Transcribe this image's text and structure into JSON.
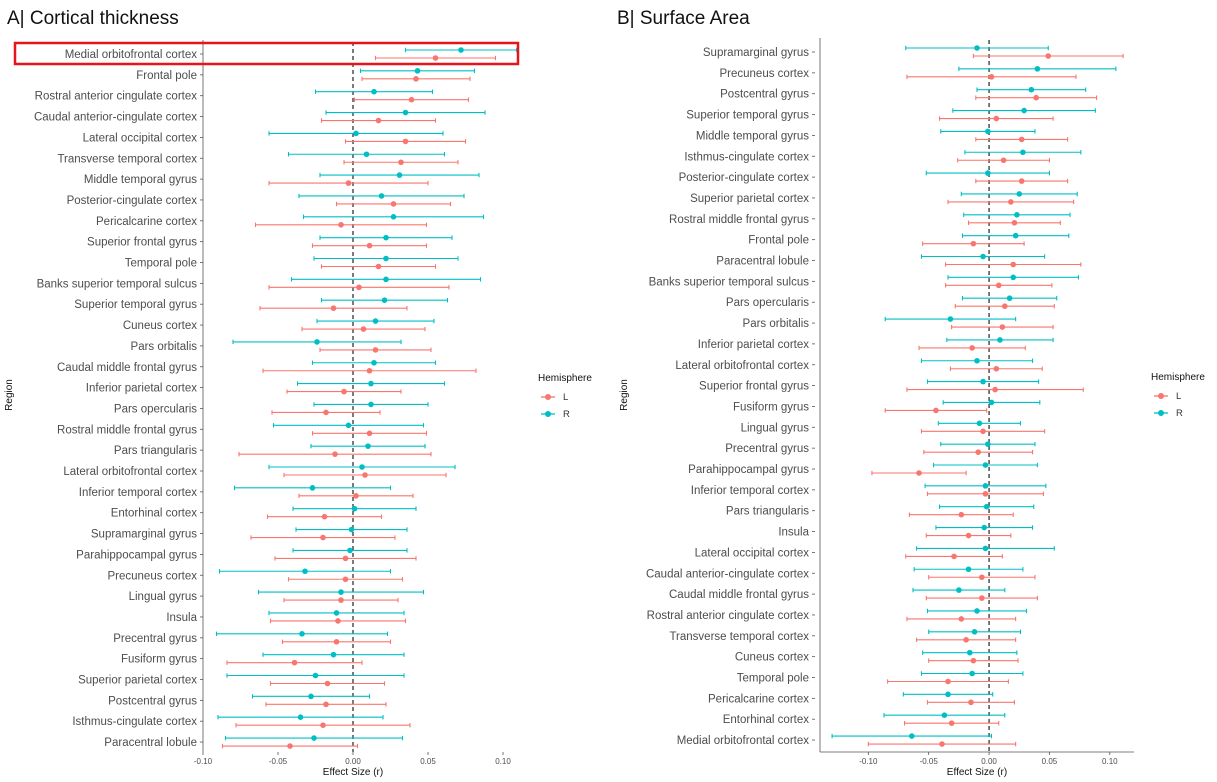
{
  "colors": {
    "L": "#f8766d",
    "R": "#00bfc4",
    "highlight": "#e8141b",
    "zero_line": "#333333"
  },
  "chart_data": [
    {
      "type": "forest",
      "title": "A| Cortical thickness",
      "ylabel": "Region",
      "xlabel": "Effect Size (r)",
      "xlim": [
        -0.1,
        0.1
      ],
      "xticks": [
        "-0.10",
        "-0.05",
        "0.00",
        "0.05",
        "0.10"
      ],
      "xtick_values": [
        -0.1,
        -0.05,
        0,
        0.05,
        0.1
      ],
      "highlighted_region": "Medial orbitofrontal cortex",
      "legend": {
        "title": "Hemisphere",
        "entries": [
          "L",
          "R"
        ]
      },
      "regions": [
        {
          "name": "Medial orbitofrontal cortex",
          "L": [
            0.055,
            0.015,
            0.095
          ],
          "R": [
            0.072,
            0.035,
            0.109
          ]
        },
        {
          "name": "Frontal pole",
          "L": [
            0.042,
            0.006,
            0.078
          ],
          "R": [
            0.043,
            0.005,
            0.081
          ]
        },
        {
          "name": "Rostral anterior cingulate cortex",
          "L": [
            0.039,
            0.001,
            0.077
          ],
          "R": [
            0.014,
            -0.025,
            0.053
          ]
        },
        {
          "name": "Caudal anterior-cingulate cortex",
          "L": [
            0.017,
            -0.021,
            0.055
          ],
          "R": [
            0.035,
            -0.018,
            0.088
          ]
        },
        {
          "name": "Lateral occipital cortex",
          "L": [
            0.035,
            -0.005,
            0.075
          ],
          "R": [
            0.002,
            -0.056,
            0.06
          ]
        },
        {
          "name": "Transverse temporal cortex",
          "L": [
            0.032,
            -0.006,
            0.07
          ],
          "R": [
            0.009,
            -0.043,
            0.061
          ]
        },
        {
          "name": "Middle temporal gyrus",
          "L": [
            -0.003,
            -0.056,
            0.05
          ],
          "R": [
            0.031,
            -0.022,
            0.084
          ]
        },
        {
          "name": "Posterior-cingulate cortex",
          "L": [
            0.027,
            -0.011,
            0.065
          ],
          "R": [
            0.019,
            -0.036,
            0.074
          ]
        },
        {
          "name": "Pericalcarine cortex",
          "L": [
            -0.008,
            -0.065,
            0.049
          ],
          "R": [
            0.027,
            -0.033,
            0.087
          ]
        },
        {
          "name": "Superior frontal gyrus",
          "L": [
            0.011,
            -0.027,
            0.049
          ],
          "R": [
            0.022,
            -0.022,
            0.066
          ]
        },
        {
          "name": "Temporal pole",
          "L": [
            0.017,
            -0.021,
            0.055
          ],
          "R": [
            0.022,
            -0.026,
            0.07
          ]
        },
        {
          "name": "Banks superior temporal sulcus",
          "L": [
            0.004,
            -0.056,
            0.064
          ],
          "R": [
            0.022,
            -0.041,
            0.085
          ]
        },
        {
          "name": "Superior temporal gyrus",
          "L": [
            -0.013,
            -0.062,
            0.036
          ],
          "R": [
            0.021,
            -0.021,
            0.063
          ]
        },
        {
          "name": "Cuneus cortex",
          "L": [
            0.007,
            -0.034,
            0.048
          ],
          "R": [
            0.015,
            -0.024,
            0.054
          ]
        },
        {
          "name": "Pars orbitalis",
          "L": [
            0.015,
            -0.022,
            0.052
          ],
          "R": [
            -0.024,
            -0.08,
            0.032
          ]
        },
        {
          "name": "Caudal middle frontal gyrus",
          "L": [
            0.011,
            -0.06,
            0.082
          ],
          "R": [
            0.014,
            -0.027,
            0.055
          ]
        },
        {
          "name": "Inferior parietal cortex",
          "L": [
            -0.006,
            -0.044,
            0.032
          ],
          "R": [
            0.012,
            -0.037,
            0.061
          ]
        },
        {
          "name": "Pars opercularis",
          "L": [
            -0.018,
            -0.054,
            0.018
          ],
          "R": [
            0.012,
            -0.026,
            0.05
          ]
        },
        {
          "name": "Rostral middle frontal gyrus",
          "L": [
            0.011,
            -0.027,
            0.049
          ],
          "R": [
            -0.003,
            -0.053,
            0.047
          ]
        },
        {
          "name": "Pars triangularis",
          "L": [
            -0.012,
            -0.076,
            0.052
          ],
          "R": [
            0.01,
            -0.028,
            0.048
          ]
        },
        {
          "name": "Lateral orbitofrontal cortex",
          "L": [
            0.008,
            -0.046,
            0.062
          ],
          "R": [
            0.006,
            -0.056,
            0.068
          ]
        },
        {
          "name": "Inferior temporal cortex",
          "L": [
            0.002,
            -0.036,
            0.04
          ],
          "R": [
            -0.027,
            -0.079,
            0.025
          ]
        },
        {
          "name": "Entorhinal cortex",
          "L": [
            -0.019,
            -0.057,
            0.019
          ],
          "R": [
            0.001,
            -0.04,
            0.042
          ]
        },
        {
          "name": "Supramarginal gyrus",
          "L": [
            -0.02,
            -0.068,
            0.028
          ],
          "R": [
            -0.001,
            -0.038,
            0.036
          ]
        },
        {
          "name": "Parahippocampal gyrus",
          "L": [
            -0.005,
            -0.052,
            0.042
          ],
          "R": [
            -0.002,
            -0.04,
            0.036
          ]
        },
        {
          "name": "Precuneus cortex",
          "L": [
            -0.005,
            -0.043,
            0.033
          ],
          "R": [
            -0.032,
            -0.089,
            0.025
          ]
        },
        {
          "name": "Lingual gyrus",
          "L": [
            -0.008,
            -0.046,
            0.03
          ],
          "R": [
            -0.008,
            -0.063,
            0.047
          ]
        },
        {
          "name": "Insula",
          "L": [
            -0.01,
            -0.055,
            0.035
          ],
          "R": [
            -0.011,
            -0.056,
            0.034
          ]
        },
        {
          "name": "Precentral gyrus",
          "L": [
            -0.011,
            -0.047,
            0.025
          ],
          "R": [
            -0.034,
            -0.091,
            0.023
          ]
        },
        {
          "name": "Fusiform gyrus",
          "L": [
            -0.039,
            -0.084,
            0.006
          ],
          "R": [
            -0.013,
            -0.06,
            0.034
          ]
        },
        {
          "name": "Superior parietal cortex",
          "L": [
            -0.017,
            -0.055,
            0.021
          ],
          "R": [
            -0.025,
            -0.084,
            0.034
          ]
        },
        {
          "name": "Postcentral gyrus",
          "L": [
            -0.018,
            -0.058,
            0.022
          ],
          "R": [
            -0.028,
            -0.067,
            0.011
          ]
        },
        {
          "name": "Isthmus-cingulate cortex",
          "L": [
            -0.02,
            -0.078,
            0.038
          ],
          "R": [
            -0.035,
            -0.09,
            0.02
          ]
        },
        {
          "name": "Paracentral lobule",
          "L": [
            -0.042,
            -0.087,
            0.003
          ],
          "R": [
            -0.026,
            -0.085,
            0.033
          ]
        }
      ]
    },
    {
      "type": "forest",
      "title": "B| Surface Area",
      "ylabel": "Region",
      "xlabel": "Effect Size (r)",
      "xlim": [
        -0.14,
        0.12
      ],
      "xticks": [
        "-0.10",
        "-0.05",
        "0.00",
        "0.05",
        "0.10"
      ],
      "xtick_values": [
        -0.1,
        -0.05,
        0,
        0.05,
        0.1
      ],
      "legend": {
        "title": "Hemisphere",
        "entries": [
          "L",
          "R"
        ]
      },
      "regions": [
        {
          "name": "Supramarginal gyrus",
          "L": [
            0.049,
            -0.013,
            0.111
          ],
          "R": [
            -0.01,
            -0.069,
            0.049
          ]
        },
        {
          "name": "Precuneus cortex",
          "L": [
            0.002,
            -0.068,
            0.072
          ],
          "R": [
            0.04,
            -0.025,
            0.105
          ]
        },
        {
          "name": "Postcentral gyrus",
          "L": [
            0.039,
            -0.011,
            0.089
          ],
          "R": [
            0.035,
            -0.01,
            0.08
          ]
        },
        {
          "name": "Superior temporal gyrus",
          "L": [
            0.006,
            -0.041,
            0.053
          ],
          "R": [
            0.029,
            -0.03,
            0.088
          ]
        },
        {
          "name": "Middle temporal gyrus",
          "L": [
            0.027,
            -0.011,
            0.065
          ],
          "R": [
            -0.001,
            -0.04,
            0.038
          ]
        },
        {
          "name": "Isthmus-cingulate cortex",
          "L": [
            0.012,
            -0.026,
            0.05
          ],
          "R": [
            0.028,
            -0.02,
            0.076
          ]
        },
        {
          "name": "Posterior-cingulate cortex",
          "L": [
            0.027,
            -0.011,
            0.065
          ],
          "R": [
            -0.001,
            -0.052,
            0.05
          ]
        },
        {
          "name": "Superior parietal cortex",
          "L": [
            0.018,
            -0.034,
            0.07
          ],
          "R": [
            0.025,
            -0.023,
            0.073
          ]
        },
        {
          "name": "Rostral middle frontal gyrus",
          "L": [
            0.021,
            -0.017,
            0.059
          ],
          "R": [
            0.023,
            -0.021,
            0.067
          ]
        },
        {
          "name": "Frontal pole",
          "L": [
            -0.013,
            -0.055,
            0.029
          ],
          "R": [
            0.022,
            -0.022,
            0.066
          ]
        },
        {
          "name": "Paracentral lobule",
          "L": [
            0.02,
            -0.036,
            0.076
          ],
          "R": [
            -0.005,
            -0.056,
            0.046
          ]
        },
        {
          "name": "Banks superior temporal sulcus",
          "L": [
            0.008,
            -0.036,
            0.052
          ],
          "R": [
            0.02,
            -0.034,
            0.074
          ]
        },
        {
          "name": "Pars opercularis",
          "L": [
            0.013,
            -0.028,
            0.054
          ],
          "R": [
            0.017,
            -0.022,
            0.056
          ]
        },
        {
          "name": "Pars orbitalis",
          "L": [
            0.011,
            -0.031,
            0.053
          ],
          "R": [
            -0.032,
            -0.086,
            0.022
          ]
        },
        {
          "name": "Inferior parietal cortex",
          "L": [
            -0.014,
            -0.058,
            0.03
          ],
          "R": [
            0.009,
            -0.035,
            0.053
          ]
        },
        {
          "name": "Lateral orbitofrontal cortex",
          "L": [
            0.006,
            -0.032,
            0.044
          ],
          "R": [
            -0.01,
            -0.056,
            0.036
          ]
        },
        {
          "name": "Superior frontal gyrus",
          "L": [
            0.005,
            -0.068,
            0.078
          ],
          "R": [
            -0.005,
            -0.051,
            0.041
          ]
        },
        {
          "name": "Fusiform gyrus",
          "L": [
            -0.044,
            -0.086,
            -0.002
          ],
          "R": [
            0.002,
            -0.038,
            0.042
          ]
        },
        {
          "name": "Lingual gyrus",
          "L": [
            -0.005,
            -0.056,
            0.046
          ],
          "R": [
            -0.008,
            -0.042,
            0.026
          ]
        },
        {
          "name": "Precentral gyrus",
          "L": [
            -0.009,
            -0.054,
            0.036
          ],
          "R": [
            -0.001,
            -0.04,
            0.038
          ]
        },
        {
          "name": "Parahippocampal gyrus",
          "L": [
            -0.058,
            -0.097,
            -0.019
          ],
          "R": [
            -0.003,
            -0.046,
            0.04
          ]
        },
        {
          "name": "Inferior temporal cortex",
          "L": [
            -0.003,
            -0.051,
            0.045
          ],
          "R": [
            -0.003,
            -0.053,
            0.047
          ]
        },
        {
          "name": "Pars triangularis",
          "L": [
            -0.023,
            -0.066,
            0.02
          ],
          "R": [
            -0.002,
            -0.041,
            0.037
          ]
        },
        {
          "name": "Insula",
          "L": [
            -0.017,
            -0.052,
            0.018
          ],
          "R": [
            -0.004,
            -0.044,
            0.036
          ]
        },
        {
          "name": "Lateral occipital cortex",
          "L": [
            -0.029,
            -0.069,
            0.011
          ],
          "R": [
            -0.003,
            -0.06,
            0.054
          ]
        },
        {
          "name": "Caudal anterior-cingulate cortex",
          "L": [
            -0.006,
            -0.05,
            0.038
          ],
          "R": [
            -0.017,
            -0.062,
            0.028
          ]
        },
        {
          "name": "Caudal middle frontal gyrus",
          "L": [
            -0.006,
            -0.052,
            0.04
          ],
          "R": [
            -0.025,
            -0.063,
            0.013
          ]
        },
        {
          "name": "Rostral anterior cingulate cortex",
          "L": [
            -0.023,
            -0.068,
            0.022
          ],
          "R": [
            -0.01,
            -0.051,
            0.031
          ]
        },
        {
          "name": "Transverse temporal cortex",
          "L": [
            -0.019,
            -0.06,
            0.022
          ],
          "R": [
            -0.012,
            -0.05,
            0.026
          ]
        },
        {
          "name": "Cuneus cortex",
          "L": [
            -0.013,
            -0.05,
            0.024
          ],
          "R": [
            -0.016,
            -0.055,
            0.023
          ]
        },
        {
          "name": "Temporal pole",
          "L": [
            -0.034,
            -0.084,
            0.016
          ],
          "R": [
            -0.014,
            -0.056,
            0.028
          ]
        },
        {
          "name": "Pericalcarine cortex",
          "L": [
            -0.015,
            -0.051,
            0.021
          ],
          "R": [
            -0.034,
            -0.071,
            0.003
          ]
        },
        {
          "name": "Entorhinal cortex",
          "L": [
            -0.031,
            -0.07,
            0.008
          ],
          "R": [
            -0.037,
            -0.087,
            0.013
          ]
        },
        {
          "name": "Medial orbitofrontal cortex",
          "L": [
            -0.039,
            -0.1,
            0.022
          ],
          "R": [
            -0.064,
            -0.13,
            0.002
          ]
        }
      ]
    }
  ]
}
